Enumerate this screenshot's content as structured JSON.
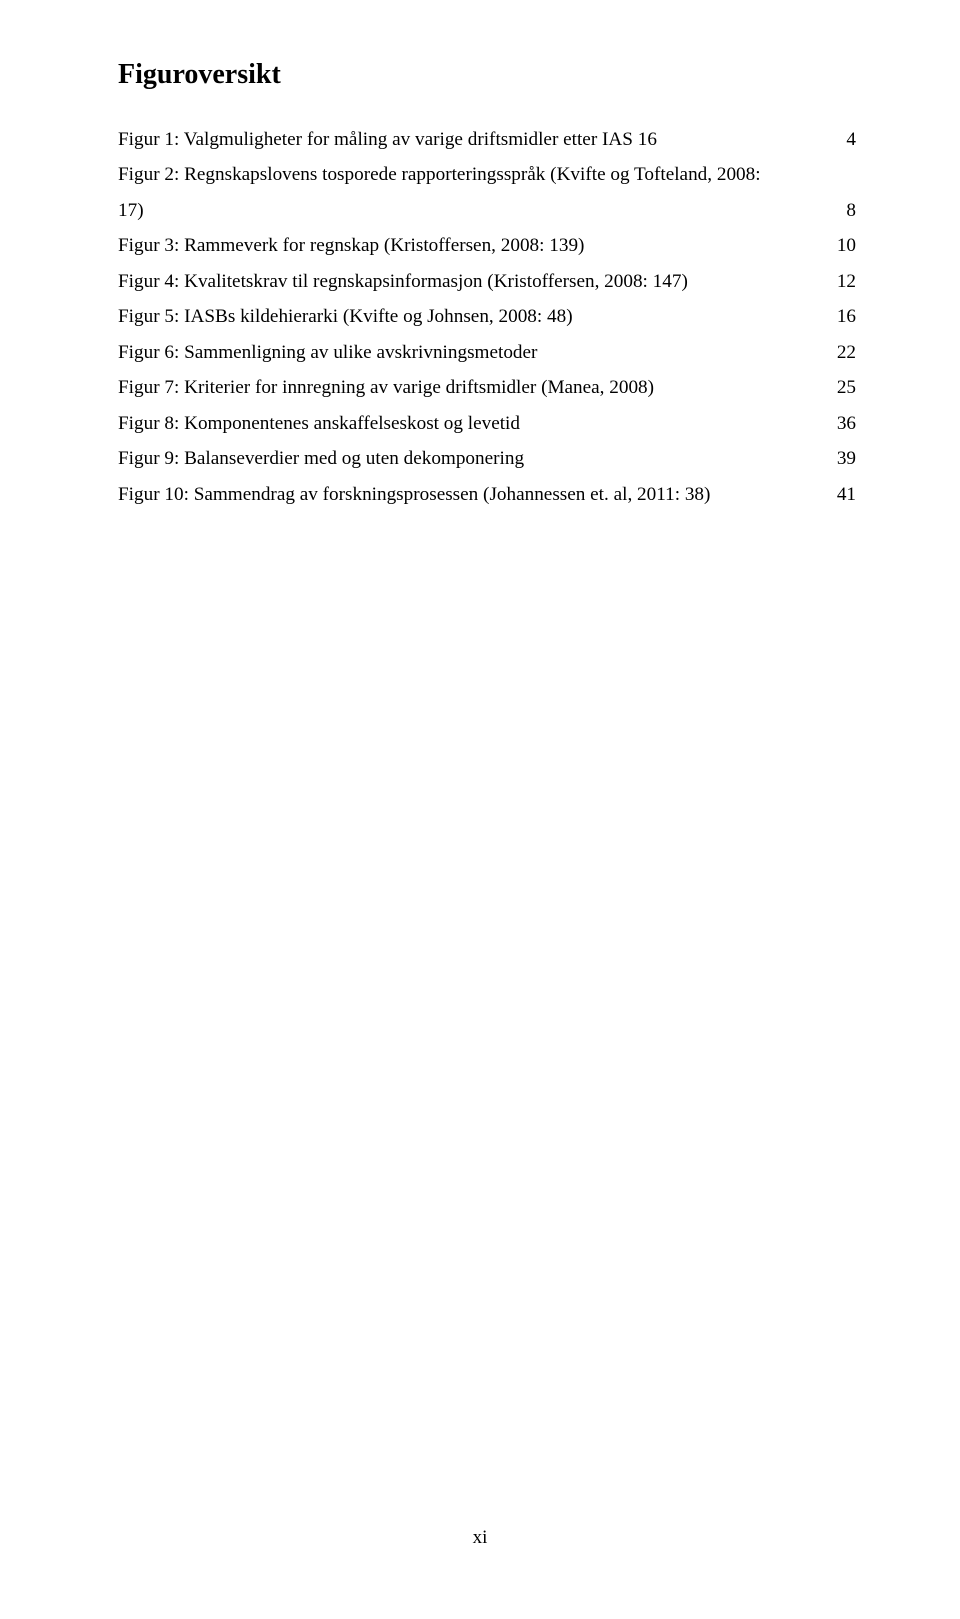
{
  "colors": {
    "background": "#ffffff",
    "text": "#000000"
  },
  "typography": {
    "heading_family": "Times New Roman",
    "heading_size_pt": 16,
    "heading_weight": "bold",
    "body_family": "Times New Roman",
    "body_size_pt": 12,
    "line_spacing": 1.85
  },
  "heading": "Figuroversikt",
  "entries": [
    {
      "label": "Figur 1: Valgmuligheter for måling av varige driftsmidler etter IAS 16",
      "page": "4",
      "wrap_before_page": false
    },
    {
      "label": "Figur 2: Regnskapslovens tosporede rapporteringsspråk (Kvifte og Tofteland, 2008:",
      "page": "",
      "wrap_before_page": true
    },
    {
      "label": "17)",
      "page": "8",
      "wrap_before_page": false
    },
    {
      "label": "Figur 3: Rammeverk for regnskap (Kristoffersen, 2008: 139)",
      "page": "10",
      "wrap_before_page": false
    },
    {
      "label": "Figur 4: Kvalitetskrav til regnskapsinformasjon (Kristoffersen, 2008: 147)",
      "page": "12",
      "wrap_before_page": false
    },
    {
      "label": "Figur 5: IASBs kildehierarki (Kvifte og Johnsen, 2008: 48)",
      "page": "16",
      "wrap_before_page": false
    },
    {
      "label": "Figur 6: Sammenligning av ulike avskrivningsmetoder",
      "page": "22",
      "wrap_before_page": false
    },
    {
      "label": "Figur 7: Kriterier for innregning av varige driftsmidler (Manea, 2008)",
      "page": "25",
      "wrap_before_page": false
    },
    {
      "label": "Figur 8: Komponentenes anskaffelseskost og levetid",
      "page": "36",
      "wrap_before_page": false
    },
    {
      "label": "Figur 9: Balanseverdier med og uten dekomponering",
      "page": "39",
      "wrap_before_page": false
    },
    {
      "label": "Figur 10: Sammendrag av forskningsprosessen (Johannessen et. al, 2011: 38)",
      "page": "41",
      "wrap_before_page": false
    }
  ],
  "footer_page_number": "xi"
}
